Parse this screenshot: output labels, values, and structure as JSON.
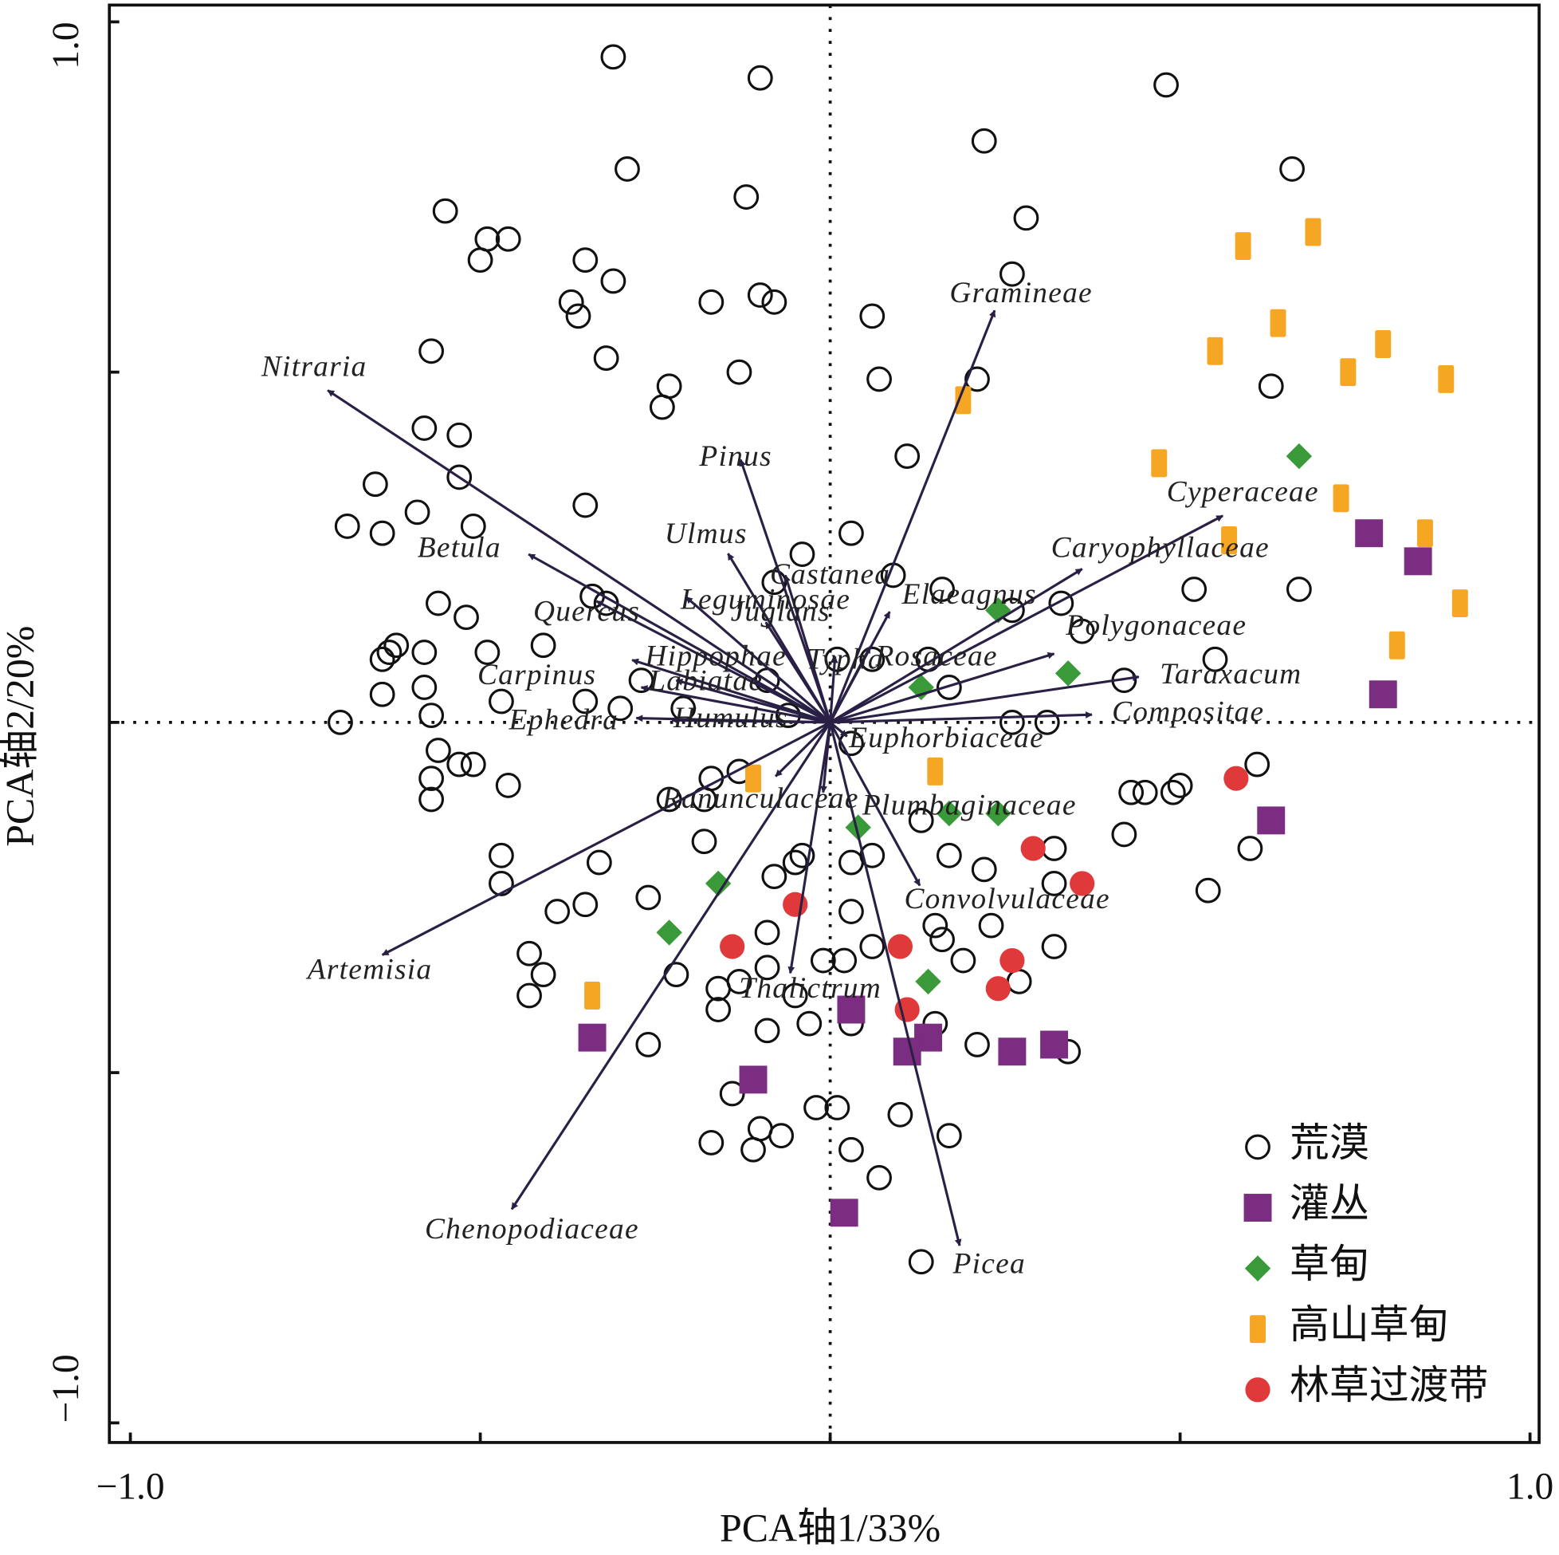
{
  "chart_data": {
    "type": "biplot",
    "x_label": "PCA轴1/33%",
    "y_label": "PCA轴2/20%",
    "xlim": [
      -1.03,
      1.013
    ],
    "ylim": [
      -1.028,
      1.024
    ],
    "xticks": [
      {
        "value": -1.0,
        "label": "−1.0"
      },
      {
        "value": -0.5,
        "label": null
      },
      {
        "value": 0,
        "label": null
      },
      {
        "value": 0.5,
        "label": null
      },
      {
        "value": 1.0,
        "label": "1.0"
      }
    ],
    "yticks": [
      {
        "value": -1.0,
        "label": "−1.0"
      },
      {
        "value": -0.5,
        "label": null
      },
      {
        "value": 0,
        "label": null
      },
      {
        "value": 0.5,
        "label": null
      },
      {
        "value": 1.0,
        "label": "1.0"
      }
    ],
    "zero_lines": true,
    "legend": "lower right",
    "arrow_color": "#2a1f45",
    "loadings": [
      {
        "name": "Nitraria",
        "x": -0.718,
        "y": 0.474
      },
      {
        "name": "Gramineae",
        "x": 0.235,
        "y": 0.588
      },
      {
        "name": "Pinus",
        "x": -0.128,
        "y": 0.375
      },
      {
        "name": "Betula",
        "x": -0.431,
        "y": 0.24
      },
      {
        "name": "Ulmus",
        "x": -0.146,
        "y": 0.241
      },
      {
        "name": "Cyperaceae",
        "x": 0.561,
        "y": 0.295
      },
      {
        "name": "Caryophyllaceae",
        "x": 0.36,
        "y": 0.219
      },
      {
        "name": "Castanea",
        "x": -0.064,
        "y": 0.21
      },
      {
        "name": "Elaeagnus",
        "x": 0.085,
        "y": 0.158
      },
      {
        "name": "Leguminosae",
        "x": -0.206,
        "y": 0.179
      },
      {
        "name": "Juglans",
        "x": -0.092,
        "y": 0.143
      },
      {
        "name": "Quercus",
        "x": -0.334,
        "y": 0.173
      },
      {
        "name": "Polygonaceae",
        "x": 0.32,
        "y": 0.098
      },
      {
        "name": "Taraxacum",
        "x": 0.441,
        "y": 0.065
      },
      {
        "name": "Rosaceae",
        "x": 0.057,
        "y": 0.108
      },
      {
        "name": "Typha",
        "x": 0.007,
        "y": 0.094
      },
      {
        "name": "Hippophae",
        "x": -0.283,
        "y": 0.089
      },
      {
        "name": "Carpinus",
        "x": -0.27,
        "y": 0.05
      },
      {
        "name": "Labiatae",
        "x": -0.22,
        "y": 0.06
      },
      {
        "name": "Ephedra",
        "x": -0.277,
        "y": 0.006
      },
      {
        "name": "Humulus",
        "x": -0.226,
        "y": 0.003
      },
      {
        "name": "Compositae",
        "x": 0.374,
        "y": 0.011
      },
      {
        "name": "Euphorbiaceae",
        "x": 0.024,
        "y": -0.02
      },
      {
        "name": "Ranunculaceae",
        "x": -0.078,
        "y": -0.077
      },
      {
        "name": "Plumbaginaceae",
        "x": -0.01,
        "y": -0.1
      },
      {
        "name": "Artemisia",
        "x": -0.64,
        "y": -0.332
      },
      {
        "name": "Convolvulaceae",
        "x": 0.128,
        "y": -0.233
      },
      {
        "name": "Thalictrum",
        "x": -0.057,
        "y": -0.358
      },
      {
        "name": "Chenopodiaceae",
        "x": -0.455,
        "y": -0.695
      },
      {
        "name": "Picea",
        "x": 0.185,
        "y": -0.747
      }
    ],
    "series": [
      {
        "name": "荒漠",
        "marker": "open-circle",
        "color": "#111111",
        "x": [
          -0.31,
          -0.1,
          0.48,
          -0.29,
          0.22,
          0.66,
          -0.12,
          -0.55,
          -0.49,
          -0.46,
          -0.5,
          -0.35,
          -0.31,
          0.28,
          0.26,
          -0.37,
          -0.36,
          -0.17,
          -0.1,
          -0.08,
          0.06,
          -0.57,
          -0.32,
          -0.23,
          -0.24,
          -0.13,
          0.07,
          0.21,
          0.63,
          -0.58,
          -0.53,
          -0.53,
          -0.65,
          -0.59,
          -0.69,
          -0.64,
          -0.51,
          -0.35,
          0.11,
          0.03,
          -0.04,
          -0.08,
          0.09,
          0.16,
          0.33,
          0.26,
          0.36,
          0.52,
          0.67,
          0.55,
          0.42,
          -0.56,
          -0.52,
          -0.34,
          -0.32,
          -0.41,
          -0.49,
          -0.62,
          -0.63,
          -0.64,
          -0.58,
          -0.58,
          -0.64,
          -0.57,
          -0.7,
          -0.47,
          -0.35,
          -0.3,
          -0.27,
          -0.21,
          -0.09,
          -0.06,
          0.01,
          0.06,
          0.14,
          0.17,
          0.26,
          0.31,
          0.03,
          -0.56,
          -0.53,
          -0.51,
          -0.57,
          -0.57,
          -0.46,
          -0.17,
          -0.13,
          -0.18,
          -0.23,
          0.61,
          0.5,
          0.43,
          0.45,
          0.49,
          0.42,
          0.6,
          0.54,
          -0.47,
          -0.47,
          -0.33,
          -0.39,
          -0.35,
          -0.26,
          -0.18,
          -0.08,
          -0.05,
          -0.04,
          0.03,
          0.06,
          0.13,
          0.17,
          0.22,
          0.32,
          0.32,
          0.23,
          0.03,
          -0.43,
          -0.41,
          -0.43,
          -0.22,
          -0.09,
          -0.09,
          -0.13,
          -0.16,
          -0.16,
          -0.05,
          -0.01,
          0.02,
          0.06,
          0.15,
          0.16,
          0.19,
          0.27,
          0.32,
          -0.09,
          -0.03,
          0.03,
          0.15,
          0.21,
          0.34,
          -0.26,
          -0.14,
          -0.1,
          -0.07,
          -0.11,
          -0.17,
          -0.02,
          0.01,
          0.1,
          0.03,
          0.07,
          0.17,
          0.13
        ],
        "y": [
          0.95,
          0.92,
          0.91,
          0.79,
          0.83,
          0.79,
          0.75,
          0.73,
          0.69,
          0.69,
          0.66,
          0.66,
          0.63,
          0.72,
          0.64,
          0.6,
          0.58,
          0.6,
          0.61,
          0.6,
          0.58,
          0.53,
          0.52,
          0.48,
          0.45,
          0.5,
          0.49,
          0.49,
          0.48,
          0.42,
          0.41,
          0.35,
          0.34,
          0.3,
          0.28,
          0.27,
          0.28,
          0.31,
          0.38,
          0.27,
          0.24,
          0.2,
          0.21,
          0.19,
          0.17,
          0.16,
          0.13,
          0.19,
          0.19,
          0.09,
          0.06,
          0.17,
          0.15,
          0.18,
          0.17,
          0.11,
          0.1,
          0.11,
          0.1,
          0.09,
          0.1,
          0.05,
          0.04,
          0.01,
          0.0,
          0.03,
          0.03,
          0.02,
          0.06,
          0.02,
          0.06,
          0.01,
          0.09,
          0.09,
          0.09,
          0.05,
          0.0,
          0.0,
          -0.03,
          -0.04,
          -0.06,
          -0.06,
          -0.08,
          -0.11,
          -0.09,
          -0.08,
          -0.07,
          -0.11,
          -0.11,
          -0.06,
          -0.09,
          -0.1,
          -0.1,
          -0.1,
          -0.16,
          -0.18,
          -0.24,
          -0.19,
          -0.23,
          -0.2,
          -0.27,
          -0.26,
          -0.25,
          -0.17,
          -0.22,
          -0.2,
          -0.19,
          -0.2,
          -0.19,
          -0.14,
          -0.19,
          -0.21,
          -0.18,
          -0.23,
          -0.29,
          -0.27,
          -0.33,
          -0.36,
          -0.39,
          -0.36,
          -0.3,
          -0.35,
          -0.37,
          -0.38,
          -0.41,
          -0.39,
          -0.34,
          -0.34,
          -0.32,
          -0.29,
          -0.31,
          -0.34,
          -0.37,
          -0.32,
          -0.44,
          -0.43,
          -0.43,
          -0.43,
          -0.46,
          -0.47,
          -0.46,
          -0.53,
          -0.58,
          -0.59,
          -0.61,
          -0.6,
          -0.55,
          -0.55,
          -0.56,
          -0.61,
          -0.65,
          -0.59,
          -0.77
        ]
      },
      {
        "name": "灌丛",
        "marker": "square",
        "color": "#7b2d82",
        "x": [
          0.77,
          0.84,
          0.79,
          0.63,
          -0.34,
          -0.11,
          0.03,
          0.14,
          0.11,
          0.26,
          0.32,
          0.02
        ],
        "y": [
          0.27,
          0.23,
          0.04,
          -0.14,
          -0.45,
          -0.51,
          -0.41,
          -0.45,
          -0.47,
          -0.47,
          -0.46,
          -0.7
        ]
      },
      {
        "name": "草甸",
        "marker": "diamond",
        "color": "#3a9a3a",
        "x": [
          0.67,
          0.24,
          0.34,
          0.13,
          0.24,
          0.17,
          0.04,
          -0.16,
          -0.23,
          0.14
        ],
        "y": [
          0.38,
          0.16,
          0.07,
          0.05,
          -0.13,
          -0.13,
          -0.15,
          -0.23,
          -0.3,
          -0.37
        ]
      },
      {
        "name": "高山草甸",
        "marker": "bar",
        "color": "#f5a623",
        "x": [
          0.69,
          0.59,
          0.64,
          0.55,
          0.79,
          0.74,
          0.88,
          0.19,
          0.47,
          0.73,
          0.85,
          0.57,
          0.9,
          0.81,
          0.15,
          -0.11,
          -0.34
        ],
        "y": [
          0.7,
          0.68,
          0.57,
          0.53,
          0.54,
          0.5,
          0.49,
          0.46,
          0.37,
          0.32,
          0.27,
          0.26,
          0.17,
          0.11,
          -0.07,
          -0.08,
          -0.39
        ]
      },
      {
        "name": "林草过渡带",
        "marker": "filled-circle",
        "color": "#e0393a",
        "x": [
          0.58,
          0.29,
          0.36,
          -0.05,
          -0.14,
          0.1,
          0.26,
          0.24,
          0.11
        ],
        "y": [
          -0.08,
          -0.18,
          -0.23,
          -0.26,
          -0.32,
          -0.32,
          -0.34,
          -0.38,
          -0.41
        ]
      }
    ]
  }
}
